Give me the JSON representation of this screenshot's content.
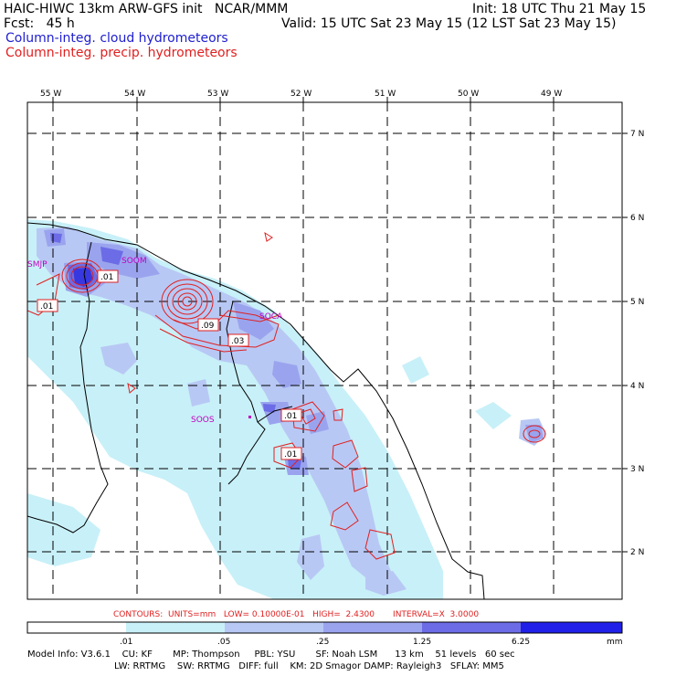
{
  "header": {
    "title": "HAIC-HIWC 13km ARW-GFS init   NCAR/MMM",
    "fcst": "Fcst:   45 h",
    "init": "Init: 18 UTC Thu 21 May 15",
    "valid": "Valid: 15 UTC Sat 23 May 15 (12 LST Sat 23 May 15)",
    "field1": "Column-integ. cloud hydrometeors",
    "field2": "Column-integ. precip. hydrometeors"
  },
  "colors": {
    "field1": "#2020d0",
    "field2": "#e02020",
    "shade1": "#c8f0f8",
    "shade2": "#b8c8f4",
    "shade3": "#9aa4ee",
    "shade4": "#6c6ce6",
    "shade5": "#3838e0",
    "shade6": "#2020e8",
    "contour": "#e02020",
    "station": "#c000c0"
  },
  "map": {
    "lon_labels": [
      "55 W",
      "54 W",
      "53 W",
      "52 W",
      "51 W",
      "50 W",
      "49 W"
    ],
    "lat_labels": [
      "7 N",
      "6 N",
      "5 N",
      "4 N",
      "3 N",
      "2 N"
    ],
    "stations": [
      "SMJP",
      "SOOM",
      "SOCA",
      "SOOS"
    ],
    "contour_labels": [
      ".01",
      ".01",
      ".09",
      ".03",
      ".01",
      ".01"
    ]
  },
  "contour_info": "CONTOURS:  UNITS=mm   LOW= 0.10000E-01   HIGH=  2.4300       INTERVAL=X  3.0000",
  "colorbar": {
    "ticks": [
      ".01",
      ".05",
      ".25",
      "1.25",
      "6.25"
    ],
    "unit": "mm"
  },
  "model_info": {
    "line1": "Model Info: V3.6.1    CU: KF       MP: Thompson     PBL: YSU       SF: Noah LSM      13 km    51 levels   60 sec",
    "line2": "LW: RRTMG    SW: RRTMG   DIFF: full    KM: 2D Smagor DAMP: Rayleigh3   SFLAY: MM5"
  }
}
